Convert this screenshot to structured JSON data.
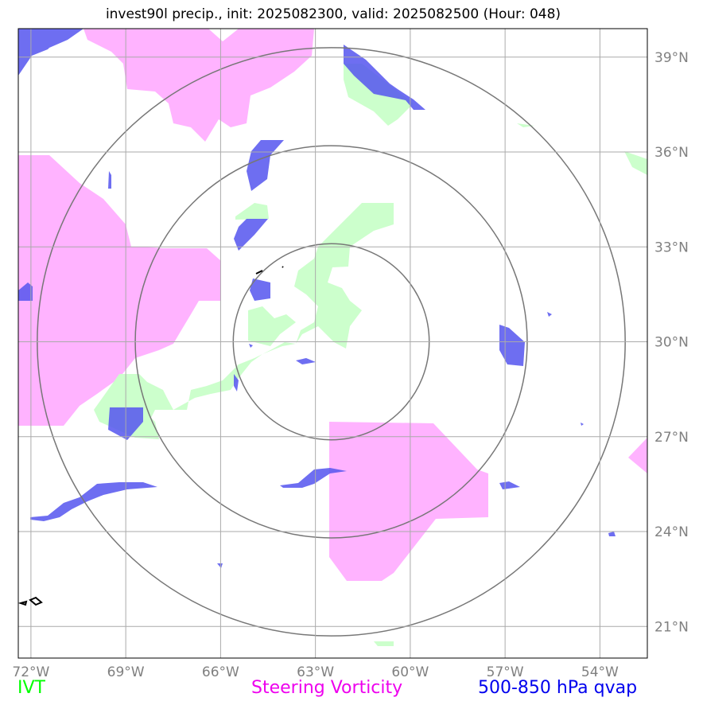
{
  "title": "invest90l precip., init: 2025082300, valid: 2025082500 (Hour: 048)",
  "colors": {
    "ivt": "#ccffcc",
    "vorticity": "#ffb3ff",
    "qvap": "#5555ee",
    "rings": "#777777",
    "grid": "#aaaaaa",
    "tick_label": "#808080",
    "legend_ivt": "#00ff00",
    "legend_vorticity": "#ee00ee",
    "legend_qvap": "#0000ee"
  },
  "map": {
    "lon_ticks": [
      "72°W",
      "69°W",
      "66°W",
      "63°W",
      "60°W",
      "57°W",
      "54°W"
    ],
    "lat_ticks": [
      "39°N",
      "36°N",
      "33°N",
      "30°N",
      "27°N",
      "24°N",
      "21°N"
    ],
    "lon_values": [
      -72,
      -69,
      -66,
      -63,
      -60,
      -57,
      -54
    ],
    "lat_values": [
      39,
      36,
      33,
      30,
      27,
      24,
      21
    ],
    "lon_range": [
      -72.4,
      -52.5
    ],
    "lat_range": [
      20.0,
      39.9
    ],
    "center": {
      "lon": -62.5,
      "lat": 30.0
    },
    "ring_radii_deg": [
      3.1,
      6.2,
      9.3
    ]
  },
  "legend": {
    "ivt": "IVT",
    "vorticity": "Steering Vorticity",
    "qvap": "500-850 hPa qvap"
  }
}
